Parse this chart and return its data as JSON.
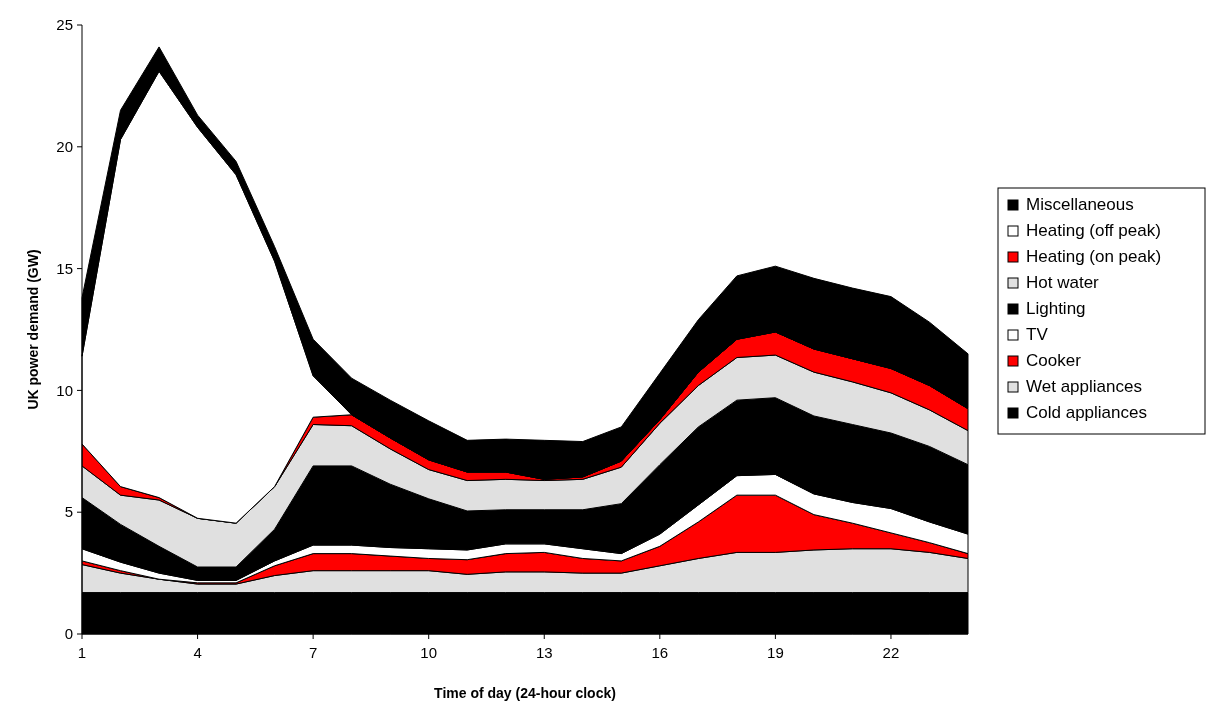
{
  "chart_data": {
    "type": "area",
    "stacked": true,
    "xlabel": "Time of day (24-hour clock)",
    "ylabel": "UK power demand (GW)",
    "x": [
      1,
      2,
      3,
      4,
      5,
      6,
      7,
      8,
      9,
      10,
      11,
      12,
      13,
      14,
      15,
      16,
      17,
      18,
      19,
      20,
      21,
      22,
      23,
      24
    ],
    "xlim": [
      1,
      24
    ],
    "xticks": [
      1,
      4,
      7,
      10,
      13,
      16,
      19,
      22
    ],
    "ylim": [
      0,
      25
    ],
    "yticks": [
      0,
      5,
      10,
      15,
      20,
      25
    ],
    "grid": false,
    "legend": "right",
    "series": [
      {
        "name": "Cold appliances",
        "color": "#000000",
        "values": [
          1.7,
          1.7,
          1.7,
          1.7,
          1.7,
          1.7,
          1.7,
          1.7,
          1.7,
          1.7,
          1.7,
          1.7,
          1.7,
          1.7,
          1.7,
          1.7,
          1.7,
          1.7,
          1.7,
          1.7,
          1.7,
          1.7,
          1.7,
          1.7
        ]
      },
      {
        "name": "Wet appliances",
        "color": "#e0e0e0",
        "values": [
          1.15,
          0.8,
          0.55,
          0.35,
          0.35,
          0.7,
          0.9,
          0.9,
          0.9,
          0.9,
          0.75,
          0.85,
          0.85,
          0.8,
          0.8,
          1.1,
          1.4,
          1.65,
          1.65,
          1.75,
          1.8,
          1.8,
          1.65,
          1.4
        ]
      },
      {
        "name": "Cooker",
        "color": "#ff0000",
        "values": [
          0.15,
          0.1,
          0,
          0.05,
          0.05,
          0.4,
          0.7,
          0.7,
          0.6,
          0.5,
          0.6,
          0.75,
          0.8,
          0.6,
          0.5,
          0.8,
          1.5,
          2.35,
          2.35,
          1.45,
          1.05,
          0.65,
          0.4,
          0.2
        ]
      },
      {
        "name": "TV",
        "color": "#ffffff",
        "values": [
          0.5,
          0.35,
          0.25,
          0.1,
          0.1,
          0.2,
          0.35,
          0.35,
          0.35,
          0.4,
          0.4,
          0.4,
          0.35,
          0.4,
          0.3,
          0.5,
          0.7,
          0.8,
          0.85,
          0.85,
          0.85,
          1.0,
          0.85,
          0.8
        ]
      },
      {
        "name": "Lighting",
        "color": "#000000",
        "values": [
          2.1,
          1.55,
          1.1,
          0.55,
          0.55,
          1.3,
          3.25,
          3.25,
          2.6,
          2.05,
          1.6,
          1.4,
          1.4,
          1.6,
          2.05,
          2.85,
          3.2,
          3.1,
          3.15,
          3.2,
          3.2,
          3.1,
          3.1,
          2.85
        ]
      },
      {
        "name": "Hot water",
        "color": "#e0e0e0",
        "values": [
          1.3,
          1.2,
          1.9,
          2.0,
          1.8,
          1.75,
          1.7,
          1.65,
          1.45,
          1.2,
          1.25,
          1.25,
          1.2,
          1.25,
          1.5,
          1.7,
          1.7,
          1.75,
          1.75,
          1.8,
          1.75,
          1.65,
          1.5,
          1.4
        ]
      },
      {
        "name": "Heating (on peak)",
        "color": "#ff0000",
        "values": [
          0.9,
          0.35,
          0.1,
          0,
          0,
          0,
          0.3,
          0.45,
          0.45,
          0.4,
          0.35,
          0.3,
          0.05,
          0.1,
          0.25,
          0.15,
          0.55,
          0.75,
          0.95,
          0.95,
          0.95,
          1.0,
          1.0,
          0.9
        ]
      },
      {
        "name": "Heating (off peak)",
        "color": "#ffffff",
        "values": [
          3.6,
          14.25,
          17.5,
          16.05,
          14.3,
          9.25,
          1.7,
          0,
          0,
          0,
          0,
          0,
          0,
          0,
          0,
          0,
          0,
          0,
          0,
          0,
          0,
          0,
          0,
          0
        ]
      },
      {
        "name": "Miscellaneous",
        "color": "#000000",
        "values": [
          2.4,
          1.2,
          1.0,
          0.5,
          0.55,
          0.6,
          1.5,
          1.5,
          1.55,
          1.6,
          1.3,
          1.35,
          1.6,
          1.45,
          1.4,
          1.9,
          2.15,
          2.6,
          2.7,
          2.9,
          2.9,
          2.95,
          2.6,
          2.25
        ]
      }
    ]
  }
}
